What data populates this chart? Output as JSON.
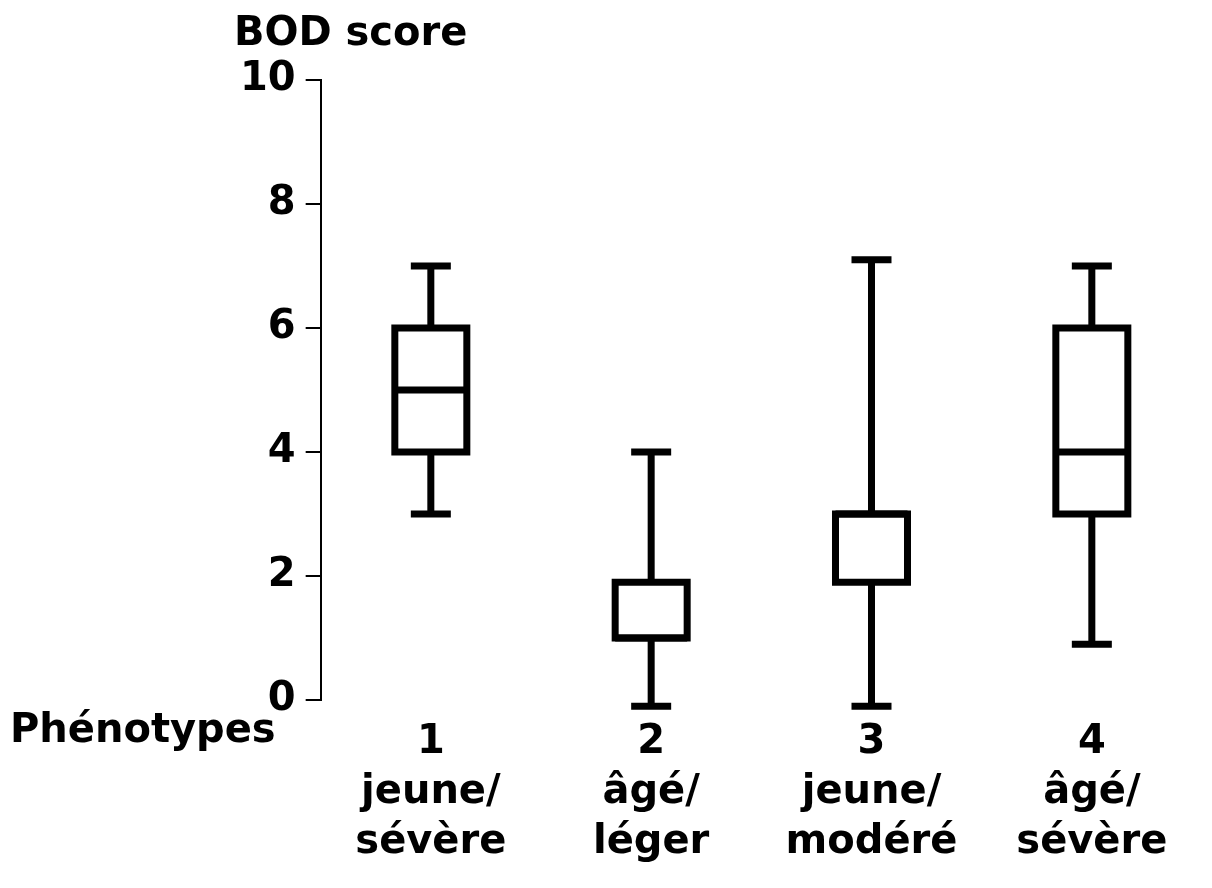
{
  "chart_data": {
    "type": "box",
    "title": null,
    "ylabel": "BOD score",
    "xlabel": "Phénotypes",
    "categories": [
      "1\njeune/\nsévère",
      "2\nâgé/\nléger",
      "3\njeune/\nmodéré",
      "4\nâgé/\nsévère"
    ],
    "boxes": [
      {
        "low": 3,
        "q1": 4,
        "median": 5,
        "q3": 6,
        "high": 7
      },
      {
        "low": -0.1,
        "q1": 1,
        "median": 1,
        "q3": 1.9,
        "high": 4
      },
      {
        "low": -0.1,
        "q1": 1.9,
        "median": 3,
        "q3": 3,
        "high": 7.1
      },
      {
        "low": 0.9,
        "q1": 3,
        "median": 4,
        "q3": 6,
        "high": 7
      }
    ],
    "color": "#000000",
    "ylim": [
      0,
      10
    ],
    "yticks": [
      0,
      2,
      4,
      6,
      8,
      10
    ]
  }
}
